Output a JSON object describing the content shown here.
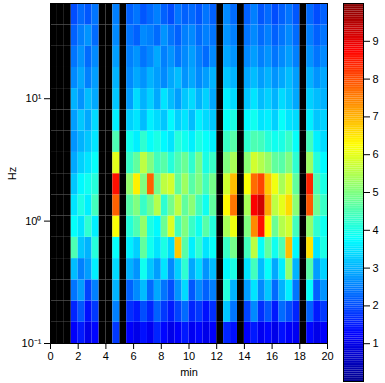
{
  "chart_data": {
    "type": "heatmap",
    "x_label": "min",
    "y_label": "Hz",
    "log": "y",
    "xlim": [
      0,
      20
    ],
    "xticks": [
      0,
      2,
      4,
      6,
      8,
      10,
      12,
      14,
      16,
      18,
      20
    ],
    "ylim": [
      0.1,
      60
    ],
    "yticks": [
      {
        "value": 0.1,
        "label": "10⁻¹"
      },
      {
        "value": 1,
        "label": "10⁰"
      },
      {
        "value": 10,
        "label": "10¹"
      }
    ],
    "x_bins": [
      0,
      0.5,
      1,
      1.5,
      2,
      2.5,
      3,
      3.5,
      4,
      4.5,
      5,
      5.5,
      6,
      6.5,
      7,
      7.5,
      8,
      8.5,
      9,
      9.5,
      10,
      10.5,
      11,
      11.5,
      12,
      12.5,
      13,
      13.5,
      14,
      14.5,
      15,
      15.5,
      16,
      16.5,
      17,
      17.5,
      18,
      18.5,
      19,
      19.5,
      20
    ],
    "y_bins": [
      0.1,
      0.149,
      0.222,
      0.331,
      0.494,
      0.737,
      1.1,
      1.64,
      2.44,
      3.64,
      5.43,
      8.1,
      12.1,
      18,
      26.8,
      40,
      60
    ],
    "cells": [
      [
        null,
        null,
        null,
        1.2,
        1.5,
        1.0,
        1.3,
        null,
        null,
        1.8,
        null,
        1.2,
        1.0,
        1.4,
        1.1,
        1.6,
        1.3,
        1.0,
        1.2,
        1.5,
        1.1,
        1.3,
        1.0,
        1.2,
        null,
        1.6,
        1.4,
        null,
        1.2,
        1.5,
        1.1,
        1.3,
        1.0,
        1.4,
        1.2,
        1.1,
        null,
        1.3,
        1.0,
        1.2
      ],
      [
        null,
        null,
        null,
        1.6,
        2.1,
        1.4,
        1.8,
        null,
        null,
        2.5,
        null,
        1.7,
        1.5,
        2.0,
        1.6,
        2.2,
        1.8,
        1.5,
        1.9,
        2.3,
        1.6,
        1.8,
        1.4,
        1.7,
        null,
        3.2,
        2.4,
        null,
        1.9,
        2.6,
        1.7,
        2.1,
        1.5,
        2.3,
        2.0,
        1.6,
        null,
        2.2,
        1.5,
        1.8
      ],
      [
        null,
        null,
        null,
        2.4,
        2.8,
        1.9,
        2.5,
        null,
        null,
        3.0,
        null,
        2.2,
        2.6,
        3.1,
        2.3,
        2.9,
        2.4,
        2.0,
        2.7,
        3.4,
        2.1,
        2.6,
        2.2,
        2.5,
        null,
        4.1,
        3.0,
        null,
        2.8,
        3.5,
        2.6,
        3.2,
        2.3,
        3.0,
        3.6,
        2.4,
        null,
        3.8,
        2.2,
        2.7
      ],
      [
        null,
        null,
        null,
        3.1,
        2.5,
        2.8,
        3.6,
        null,
        null,
        3.4,
        null,
        3.0,
        2.7,
        3.9,
        3.2,
        2.8,
        3.5,
        2.6,
        3.3,
        4.2,
        2.9,
        3.4,
        2.7,
        3.1,
        null,
        3.7,
        4.0,
        null,
        3.5,
        4.4,
        3.1,
        3.8,
        2.9,
        3.6,
        5.2,
        3.0,
        null,
        4.6,
        2.8,
        3.3
      ],
      [
        null,
        null,
        null,
        4.5,
        3.2,
        3.0,
        4.1,
        null,
        null,
        3.8,
        null,
        3.6,
        3.3,
        4.7,
        3.9,
        3.5,
        4.0,
        3.4,
        6.8,
        4.6,
        3.6,
        4.2,
        3.5,
        3.8,
        null,
        4.3,
        4.9,
        null,
        4.4,
        5.6,
        3.8,
        4.7,
        3.9,
        4.5,
        6.9,
        3.7,
        null,
        6.5,
        3.5,
        4.0
      ],
      [
        null,
        null,
        null,
        3.8,
        3.5,
        4.2,
        3.6,
        null,
        null,
        6.2,
        null,
        4.1,
        4.5,
        5.2,
        4.0,
        3.7,
        4.8,
        5.9,
        4.4,
        5.0,
        4.3,
        3.9,
        4.6,
        4.1,
        null,
        5.4,
        6.1,
        null,
        5.0,
        7.4,
        8.6,
        6.3,
        4.8,
        5.5,
        5.8,
        4.4,
        null,
        5.2,
        4.2,
        3.9
      ],
      [
        null,
        null,
        null,
        3.5,
        4.0,
        3.6,
        4.4,
        null,
        null,
        7.8,
        null,
        4.6,
        5.0,
        4.3,
        4.8,
        5.5,
        4.2,
        4.9,
        5.6,
        4.7,
        5.1,
        4.4,
        3.9,
        4.7,
        null,
        6.3,
        7.6,
        null,
        5.4,
        8.8,
        9.2,
        7.1,
        5.6,
        6.0,
        6.6,
        5.1,
        null,
        7.9,
        4.8,
        4.3
      ],
      [
        null,
        null,
        null,
        3.2,
        3.7,
        3.9,
        4.1,
        null,
        null,
        8.6,
        null,
        5.2,
        6.4,
        5.0,
        7.8,
        4.9,
        5.6,
        5.8,
        4.7,
        5.3,
        4.6,
        5.0,
        4.4,
        4.9,
        null,
        5.8,
        6.9,
        null,
        6.2,
        7.7,
        8.1,
        6.8,
        6.1,
        5.4,
        5.9,
        4.7,
        null,
        8.4,
        4.5,
        4.0
      ],
      [
        null,
        null,
        null,
        2.9,
        3.3,
        3.5,
        3.8,
        null,
        null,
        6.0,
        null,
        4.3,
        4.7,
        5.6,
        5.0,
        4.4,
        4.6,
        4.1,
        4.5,
        4.8,
        4.2,
        4.9,
        4.0,
        4.3,
        null,
        5.0,
        5.4,
        null,
        5.1,
        5.8,
        5.5,
        5.2,
        4.7,
        4.6,
        5.0,
        4.2,
        null,
        5.3,
        4.1,
        3.7
      ],
      [
        null,
        null,
        null,
        2.7,
        3.0,
        3.2,
        3.5,
        null,
        null,
        4.5,
        null,
        3.9,
        3.6,
        4.2,
        3.8,
        4.0,
        3.7,
        3.5,
        4.1,
        3.9,
        3.6,
        4.0,
        3.8,
        3.6,
        null,
        4.3,
        4.6,
        null,
        4.2,
        4.5,
        4.4,
        4.1,
        3.9,
        4.0,
        4.3,
        3.8,
        null,
        4.4,
        3.6,
        3.4
      ],
      [
        null,
        null,
        null,
        2.8,
        3.2,
        2.9,
        3.4,
        null,
        null,
        3.6,
        null,
        3.3,
        3.5,
        3.1,
        3.6,
        3.4,
        3.2,
        3.7,
        3.3,
        3.5,
        3.1,
        3.6,
        3.4,
        3.2,
        null,
        3.8,
        4.0,
        null,
        3.7,
        3.9,
        3.5,
        3.6,
        3.3,
        3.8,
        3.5,
        3.4,
        null,
        3.6,
        3.2,
        3.3
      ],
      [
        null,
        null,
        null,
        3.0,
        2.7,
        3.1,
        2.9,
        null,
        null,
        3.2,
        null,
        2.8,
        3.4,
        3.0,
        3.3,
        2.9,
        3.5,
        3.1,
        2.8,
        3.2,
        3.4,
        3.0,
        3.3,
        2.9,
        null,
        3.6,
        3.4,
        null,
        3.2,
        3.5,
        3.1,
        3.3,
        3.0,
        3.4,
        3.2,
        2.9,
        null,
        3.3,
        3.1,
        3.0
      ],
      [
        null,
        null,
        null,
        2.6,
        2.9,
        2.5,
        2.8,
        null,
        null,
        3.0,
        null,
        2.6,
        2.9,
        2.7,
        3.0,
        2.8,
        2.6,
        2.9,
        3.1,
        2.7,
        2.9,
        2.6,
        2.8,
        3.0,
        null,
        3.2,
        3.0,
        null,
        2.9,
        3.1,
        2.8,
        3.0,
        2.7,
        2.9,
        3.1,
        2.8,
        null,
        3.0,
        2.7,
        2.9
      ],
      [
        null,
        null,
        null,
        2.4,
        2.7,
        2.3,
        2.6,
        null,
        null,
        2.8,
        null,
        2.5,
        2.7,
        2.4,
        2.6,
        2.9,
        2.5,
        2.7,
        2.4,
        2.6,
        2.8,
        2.5,
        2.3,
        2.6,
        null,
        2.9,
        2.7,
        null,
        2.6,
        2.8,
        2.5,
        2.7,
        2.4,
        2.6,
        2.8,
        2.5,
        null,
        2.7,
        2.4,
        2.6
      ],
      [
        null,
        null,
        null,
        2.2,
        2.5,
        2.7,
        2.3,
        null,
        null,
        2.6,
        null,
        2.4,
        2.2,
        2.6,
        2.5,
        2.3,
        2.7,
        2.4,
        2.2,
        2.5,
        2.6,
        2.3,
        2.5,
        2.4,
        null,
        2.7,
        2.5,
        null,
        2.4,
        2.6,
        2.3,
        2.5,
        2.2,
        2.4,
        2.6,
        2.3,
        null,
        2.5,
        2.2,
        2.4
      ],
      [
        null,
        null,
        null,
        2.0,
        2.3,
        2.1,
        2.4,
        null,
        null,
        2.5,
        null,
        2.2,
        2.4,
        2.1,
        2.3,
        2.5,
        2.2,
        2.0,
        2.4,
        2.2,
        2.3,
        2.1,
        2.4,
        2.2,
        null,
        2.6,
        2.3,
        null,
        2.2,
        2.5,
        2.1,
        2.3,
        2.0,
        2.2,
        2.4,
        2.1,
        null,
        2.3,
        2.0,
        2.2
      ]
    ],
    "colorbar_lim": [
      0,
      10
    ],
    "colorbar_ticks": [
      1,
      2,
      3,
      4,
      5,
      6,
      7,
      8,
      9
    ]
  }
}
